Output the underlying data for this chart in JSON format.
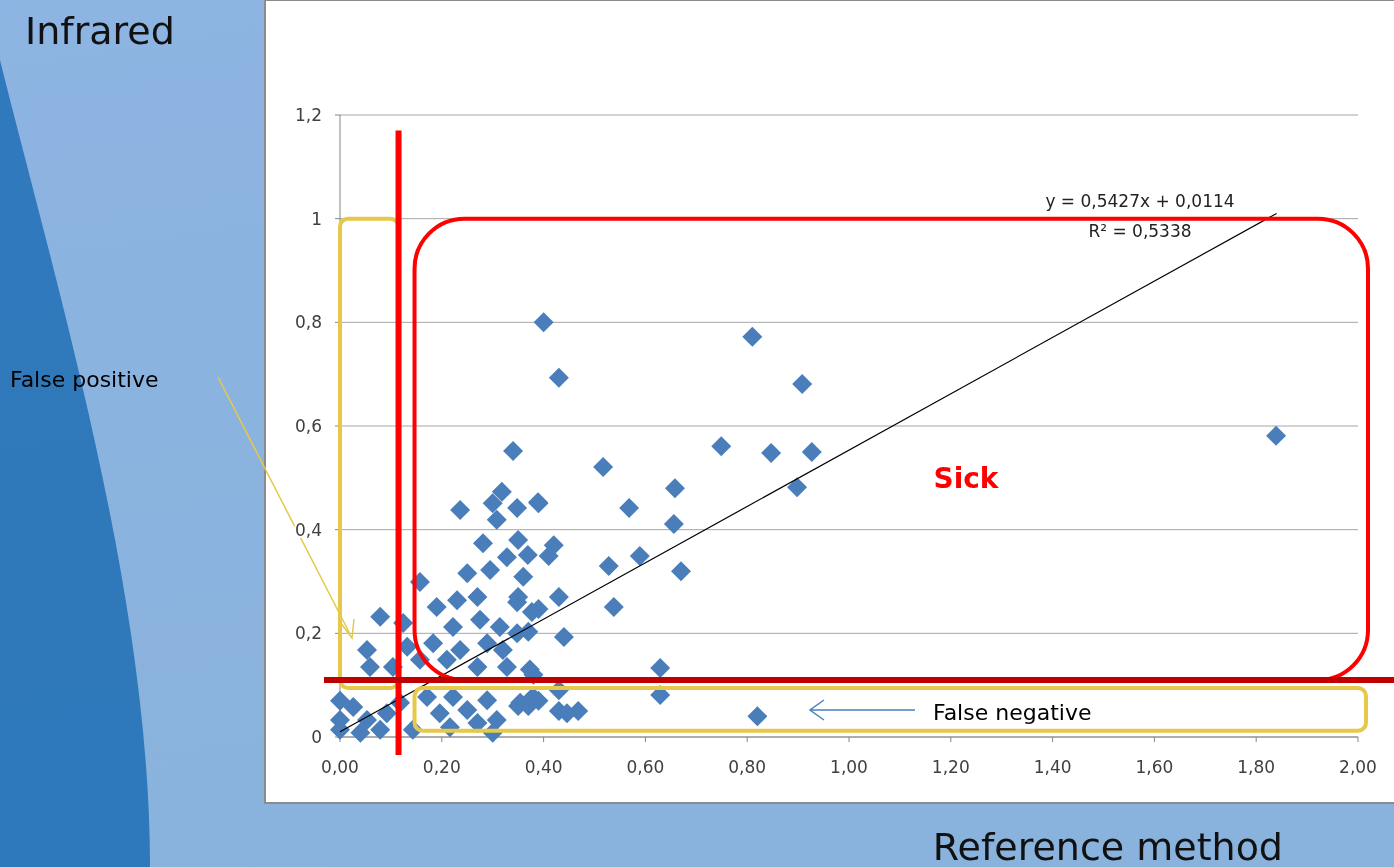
{
  "chart_data": {
    "type": "scatter",
    "xlabel": "Reference method",
    "ylabel": "Infrared",
    "xlim": [
      0,
      2
    ],
    "xticks": [
      {
        "value": 0,
        "label": "0,00"
      },
      {
        "value": 0.2,
        "label": "0,20"
      },
      {
        "value": 0.4,
        "label": "0,40"
      },
      {
        "value": 0.6,
        "label": "0,60"
      },
      {
        "value": 0.8,
        "label": "0,80"
      },
      {
        "value": 1,
        "label": "1,00"
      },
      {
        "value": 1.2,
        "label": "1,20"
      },
      {
        "value": 1.4,
        "label": "1,40"
      },
      {
        "value": 1.6,
        "label": "1,60"
      },
      {
        "value": 1.8,
        "label": "1,80"
      },
      {
        "value": 2,
        "label": "2,00"
      }
    ],
    "ylim": [
      0,
      1.2
    ],
    "yticks": [
      0,
      {
        "value": 0.2,
        "label": "0,2"
      },
      {
        "value": 0.4,
        "label": "0,4"
      },
      {
        "value": 0.6,
        "label": "0,6"
      },
      {
        "value": 0.8,
        "label": "0,8"
      },
      1,
      {
        "value": 1.2,
        "label": "1,2"
      }
    ],
    "grid": "y",
    "series": [
      {
        "color": "#4a7ebb",
        "marker": "diamond",
        "x": [
          0.4,
          0.43,
          0.81,
          0.908,
          1.839,
          0.749,
          0.847,
          0.927,
          0.898,
          0.517,
          0.568,
          0.658,
          0.656,
          0.589,
          0.67,
          0.528,
          0.538,
          0.34,
          0.44,
          0.43,
          0.39,
          0.42,
          0.41,
          0.39,
          0.36,
          0.35,
          0.37,
          0.629,
          0.629,
          0.82,
          0.468,
          0.43,
          0.43,
          0.39,
          0.35,
          0.37,
          0.38,
          0.236,
          0.318,
          0.3,
          0.348,
          0.389,
          0.308,
          0.281,
          0.35,
          0.328,
          0.369,
          0.25,
          0.295,
          0.157,
          0.348,
          0.377,
          0.079,
          0.19,
          0.23,
          0.27,
          0.222,
          0.275,
          0.124,
          0.314,
          0.348,
          0.053,
          0.132,
          0.183,
          0.236,
          0.289,
          0.32,
          0.059,
          0.104,
          0.157,
          0.21,
          0.27,
          0.328,
          0.373,
          0,
          0.026,
          0,
          0,
          0.053,
          0.092,
          0.079,
          0.143,
          0.04,
          0.118,
          0.171,
          0.222,
          0.196,
          0.25,
          0.289,
          0.308,
          0.27,
          0.3,
          0.216,
          0.354,
          0.379,
          0.446
        ],
        "values": [
          0.8,
          0.693,
          0.772,
          0.681,
          0.581,
          0.561,
          0.548,
          0.55,
          0.482,
          0.521,
          0.442,
          0.48,
          0.411,
          0.349,
          0.32,
          0.33,
          0.251,
          0.552,
          0.193,
          0.27,
          0.247,
          0.37,
          0.349,
          0.451,
          0.309,
          0.27,
          0.203,
          0.133,
          0.081,
          0.04,
          0.05,
          0.05,
          0.09,
          0.07,
          0.06,
          0.06,
          0.12,
          0.438,
          0.473,
          0.451,
          0.442,
          0.453,
          0.419,
          0.374,
          0.38,
          0.347,
          0.351,
          0.316,
          0.322,
          0.299,
          0.26,
          0.241,
          0.232,
          0.251,
          0.264,
          0.27,
          0.212,
          0.226,
          0.22,
          0.212,
          0.2,
          0.168,
          0.174,
          0.181,
          0.168,
          0.181,
          0.168,
          0.135,
          0.135,
          0.149,
          0.149,
          0.135,
          0.135,
          0.13,
          0.07,
          0.058,
          0.033,
          0.014,
          0.033,
          0.046,
          0.014,
          0.014,
          0.008,
          0.066,
          0.077,
          0.077,
          0.046,
          0.052,
          0.071,
          0.033,
          0.027,
          0.008,
          0.019,
          0.066,
          0.077,
          0.046
        ]
      },
      {
        "type": "line",
        "color": "#000000",
        "marker": "none",
        "x": [
          0,
          1.84
        ],
        "values": [
          0.01,
          1.01
        ]
      }
    ],
    "ref_lines": [
      {
        "axis": "x",
        "value": 0.115,
        "color": "#ff0000"
      },
      {
        "axis": "y",
        "value": 0.11,
        "color": "#c00000"
      }
    ],
    "annotations": [
      "y = 0,5427x + 0,0114",
      "R² = 0,5338",
      "Sick",
      "False negative",
      "False positive"
    ]
  }
}
